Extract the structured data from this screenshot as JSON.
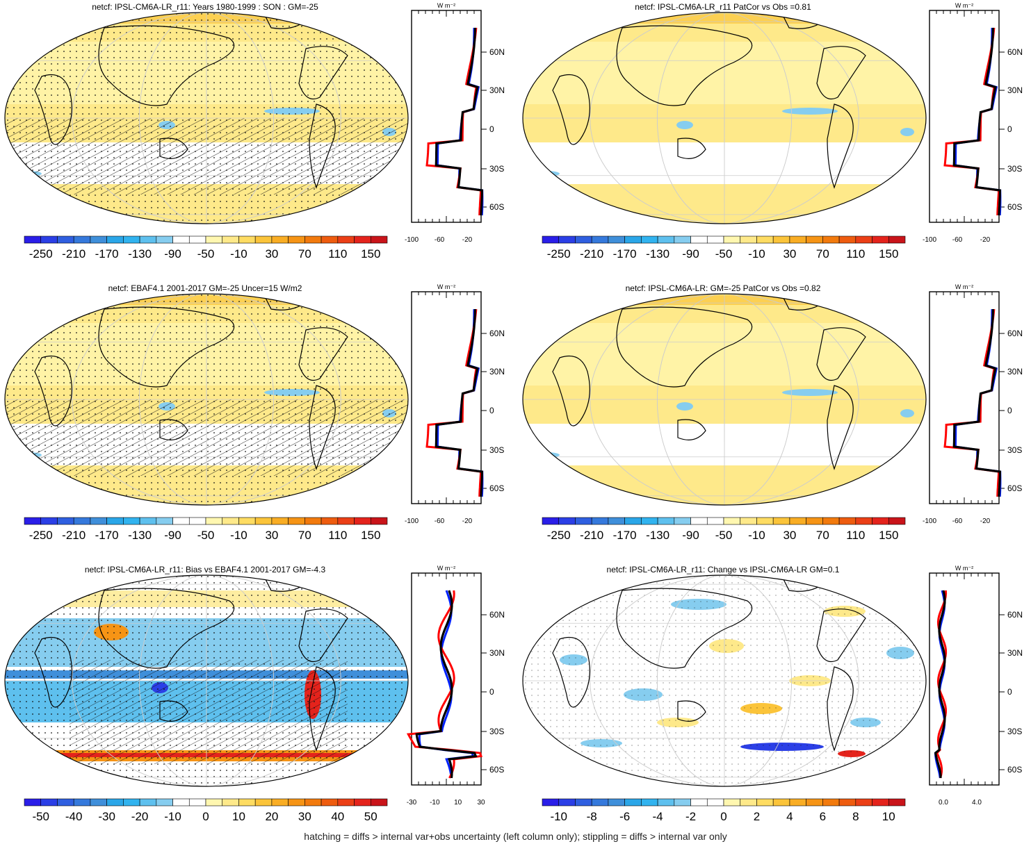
{
  "footer": "hatching = diffs > internal var+obs uncertainty (left column only); stippling = diffs > internal var only",
  "colors": {
    "yellow_light": "#fff3a6",
    "yellow": "#fde36a",
    "orange": "#f7b733",
    "blue_light": "#86c8ec",
    "blue": "#3f9ee0",
    "blue_dark": "#1f3fd8",
    "red": "#e8261c",
    "black_line": "#000000",
    "red_line": "#ff0000",
    "blue_line": "#0022ff"
  },
  "chart_data": [
    {
      "type": "heatmap",
      "title": "netcf: IPSL-CM6A-LR_r11: Years 1980-1999 : SON : GM=-25",
      "colorbar_ticks": [
        "-250",
        "-210",
        "-170",
        "-130",
        "-90",
        "-50",
        "-10",
        "30",
        "70",
        "110",
        "150"
      ],
      "zonal_ticks_x": [
        "-100",
        "-60",
        "-20"
      ],
      "lat_ticks": [
        "60N",
        "30N",
        "0",
        "30S",
        "60S"
      ],
      "units": "W m-2"
    },
    {
      "type": "heatmap",
      "title": "netcf: IPSL-CM6A-LR_r11 PatCor vs Obs =0.81",
      "colorbar_ticks": [
        "-250",
        "-210",
        "-170",
        "-130",
        "-90",
        "-50",
        "-10",
        "30",
        "70",
        "110",
        "150"
      ],
      "zonal_ticks_x": [
        "-100",
        "-60",
        "-20"
      ],
      "lat_ticks": [
        "60N",
        "30N",
        "0",
        "30S",
        "60S"
      ],
      "units": "W m-2"
    },
    {
      "type": "heatmap",
      "title": "netcf: EBAF4.1 2001-2017 GM=-25 Uncer=15 W/m2",
      "colorbar_ticks": [
        "-250",
        "-210",
        "-170",
        "-130",
        "-90",
        "-50",
        "-10",
        "30",
        "70",
        "110",
        "150"
      ],
      "zonal_ticks_x": [
        "-100",
        "-60",
        "-20"
      ],
      "lat_ticks": [
        "60N",
        "30N",
        "0",
        "30S",
        "60S"
      ],
      "units": "W m-2"
    },
    {
      "type": "heatmap",
      "title": "netcf: IPSL-CM6A-LR: GM=-25 PatCor vs Obs =0.82",
      "colorbar_ticks": [
        "-250",
        "-210",
        "-170",
        "-130",
        "-90",
        "-50",
        "-10",
        "30",
        "70",
        "110",
        "150"
      ],
      "zonal_ticks_x": [
        "-100",
        "-60",
        "-20"
      ],
      "lat_ticks": [
        "60N",
        "30N",
        "0",
        "30S",
        "60S"
      ],
      "units": "W m-2"
    },
    {
      "type": "heatmap",
      "title": "netcf: IPSL-CM6A-LR_r11: Bias vs EBAF4.1 2001-2017  GM=-4.3",
      "colorbar_ticks": [
        "-50",
        "-40",
        "-30",
        "-20",
        "-10",
        "0",
        "10",
        "20",
        "30",
        "40",
        "50"
      ],
      "zonal_ticks_x": [
        "-30",
        "-10",
        "10",
        "30"
      ],
      "lat_ticks": [
        "60N",
        "30N",
        "0",
        "30S",
        "60S"
      ],
      "units": "W m-2"
    },
    {
      "type": "heatmap",
      "title": "netcf: IPSL-CM6A-LR_r11: Change vs IPSL-CM6A-LR GM=0.1",
      "colorbar_ticks": [
        "-10",
        "-8",
        "-6",
        "-4",
        "-2",
        "0",
        "2",
        "4",
        "6",
        "8",
        "10"
      ],
      "zonal_ticks_x": [
        "0.0",
        "4.0"
      ],
      "lat_ticks": [
        "60N",
        "30N",
        "0",
        "30S",
        "60S"
      ],
      "units": "W m-2"
    }
  ]
}
